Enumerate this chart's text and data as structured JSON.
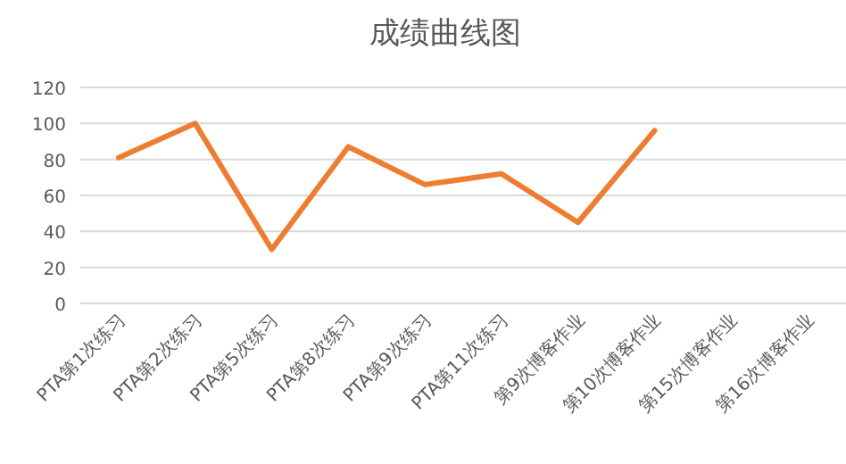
{
  "chart_data": {
    "type": "line",
    "title": "成绩曲线图",
    "categories": [
      "PTA第1次练习",
      "PTA第2次练习",
      "PTA第5次练习",
      "PTA第8次练习",
      "PTA第9次练习",
      "PTA第11次练习",
      "第9次博客作业",
      "第10次博客作业",
      "第15次博客作业",
      "第16次博客作业"
    ],
    "series": [
      {
        "color": "#ed7d31",
        "values": [
          81,
          100,
          30,
          87,
          66,
          72,
          45,
          96,
          null,
          null
        ]
      }
    ],
    "ylim": [
      0,
      120
    ],
    "yticks": [
      0,
      20,
      40,
      60,
      80,
      100,
      120
    ],
    "grid": "y",
    "marker": "none",
    "line_style": "solid"
  }
}
